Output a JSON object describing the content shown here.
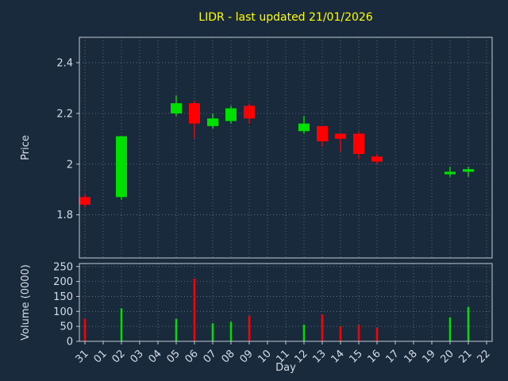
{
  "figure": {
    "colors": {
      "background": "#192a3d",
      "title": "#ffff00",
      "text": "#d4dce6",
      "grid": "#aeb9c6",
      "spine": "#c2cad4",
      "up": "#00e000",
      "down": "#ff0000"
    }
  },
  "chart_data": {
    "type": "candlestick",
    "title": "LIDR - last updated 21/01/2026",
    "xlabel": "Day",
    "ylabel_price": "Price",
    "ylabel_volume": "Volume (0000)",
    "grid": true,
    "x_tick_labels": [
      "31",
      "01",
      "02",
      "03",
      "04",
      "05",
      "06",
      "07",
      "08",
      "09",
      "10",
      "11",
      "12",
      "13",
      "14",
      "15",
      "16",
      "17",
      "18",
      "19",
      "20",
      "21",
      "22"
    ],
    "price_ylim": [
      1.63,
      2.5
    ],
    "price_ticks": [
      1.8,
      2.0,
      2.2,
      2.4
    ],
    "price_tick_labels": [
      "1.8",
      "2",
      "2.2",
      "2.4"
    ],
    "volume_ylim": [
      0,
      260
    ],
    "volume_ticks": [
      0,
      50,
      100,
      150,
      200,
      250
    ],
    "volume_tick_labels": [
      "0",
      "50",
      "100",
      "150",
      "200",
      "250"
    ],
    "candles": [
      {
        "day": "31",
        "x": 0,
        "open": 1.87,
        "high": 1.88,
        "low": 1.83,
        "close": 1.84,
        "volume": 75
      },
      {
        "day": "02",
        "x": 2,
        "open": 1.87,
        "high": 2.11,
        "low": 1.86,
        "close": 2.11,
        "volume": 110
      },
      {
        "day": "05",
        "x": 5,
        "open": 2.2,
        "high": 2.27,
        "low": 2.19,
        "close": 2.24,
        "volume": 75
      },
      {
        "day": "06",
        "x": 6,
        "open": 2.24,
        "high": 2.25,
        "low": 2.1,
        "close": 2.16,
        "volume": 210
      },
      {
        "day": "07",
        "x": 7,
        "open": 2.15,
        "high": 2.2,
        "low": 2.14,
        "close": 2.18,
        "volume": 60
      },
      {
        "day": "08",
        "x": 8,
        "open": 2.17,
        "high": 2.23,
        "low": 2.16,
        "close": 2.22,
        "volume": 65
      },
      {
        "day": "09",
        "x": 9,
        "open": 2.23,
        "high": 2.24,
        "low": 2.16,
        "close": 2.18,
        "volume": 85
      },
      {
        "day": "12",
        "x": 12,
        "open": 2.13,
        "high": 2.19,
        "low": 2.12,
        "close": 2.16,
        "volume": 55
      },
      {
        "day": "13",
        "x": 13,
        "open": 2.15,
        "high": 2.15,
        "low": 2.07,
        "close": 2.09,
        "volume": 90
      },
      {
        "day": "14",
        "x": 14,
        "open": 2.12,
        "high": 2.12,
        "low": 2.05,
        "close": 2.1,
        "volume": 50
      },
      {
        "day": "15",
        "x": 15,
        "open": 2.12,
        "high": 2.13,
        "low": 2.02,
        "close": 2.04,
        "volume": 55
      },
      {
        "day": "16",
        "x": 16,
        "open": 2.03,
        "high": 2.04,
        "low": 2.0,
        "close": 2.01,
        "volume": 45
      },
      {
        "day": "20",
        "x": 20,
        "open": 1.96,
        "high": 1.99,
        "low": 1.95,
        "close": 1.97,
        "volume": 80
      },
      {
        "day": "21",
        "x": 21,
        "open": 1.97,
        "high": 1.99,
        "low": 1.95,
        "close": 1.98,
        "volume": 115
      }
    ]
  }
}
